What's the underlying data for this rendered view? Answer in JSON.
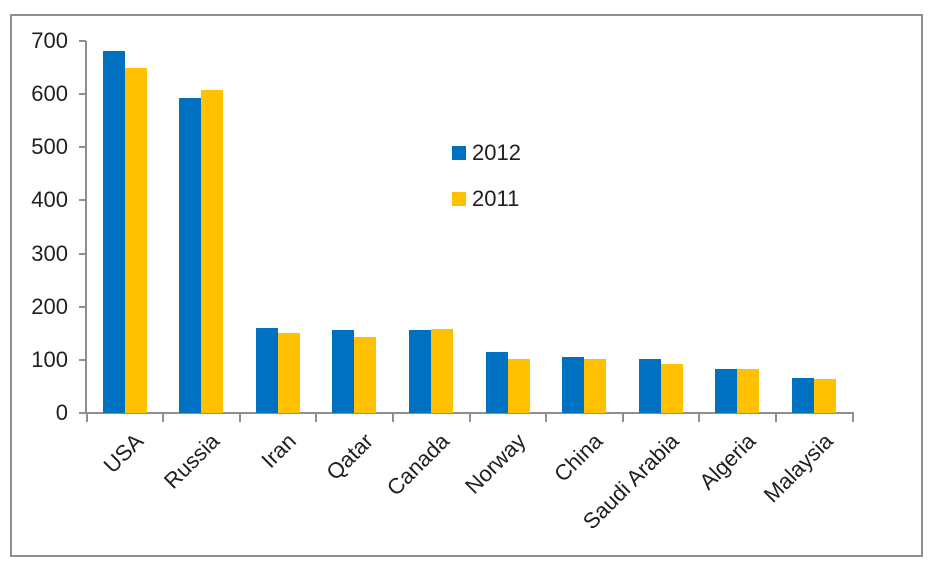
{
  "window": {
    "background": "#ffffff",
    "border_color": "#8f8f8f"
  },
  "chart_data": {
    "type": "bar",
    "title": "",
    "xlabel": "",
    "ylabel": "",
    "categories": [
      "USA",
      "Russia",
      "Iran",
      "Qatar",
      "Canada",
      "Norway",
      "China",
      "Saudi Arabia",
      "Algeria",
      "Malaysia"
    ],
    "series": [
      {
        "name": "2012",
        "color": "#0070C0",
        "values": [
          682,
          592,
          160,
          157,
          156,
          114,
          106,
          102,
          82,
          65
        ]
      },
      {
        "name": "2011",
        "color": "#FFC000",
        "values": [
          650,
          607,
          151,
          143,
          159,
          101,
          102,
          92,
          82,
          64
        ]
      }
    ],
    "ylim": [
      0,
      700
    ],
    "yticks": [
      0,
      100,
      200,
      300,
      400,
      500,
      600,
      700
    ],
    "grid": false,
    "legend_position": "upper-center-inside",
    "category_label_rotation_deg": 45,
    "axis_color": "#8f8f8f",
    "text_color": "#1f1f1f"
  }
}
